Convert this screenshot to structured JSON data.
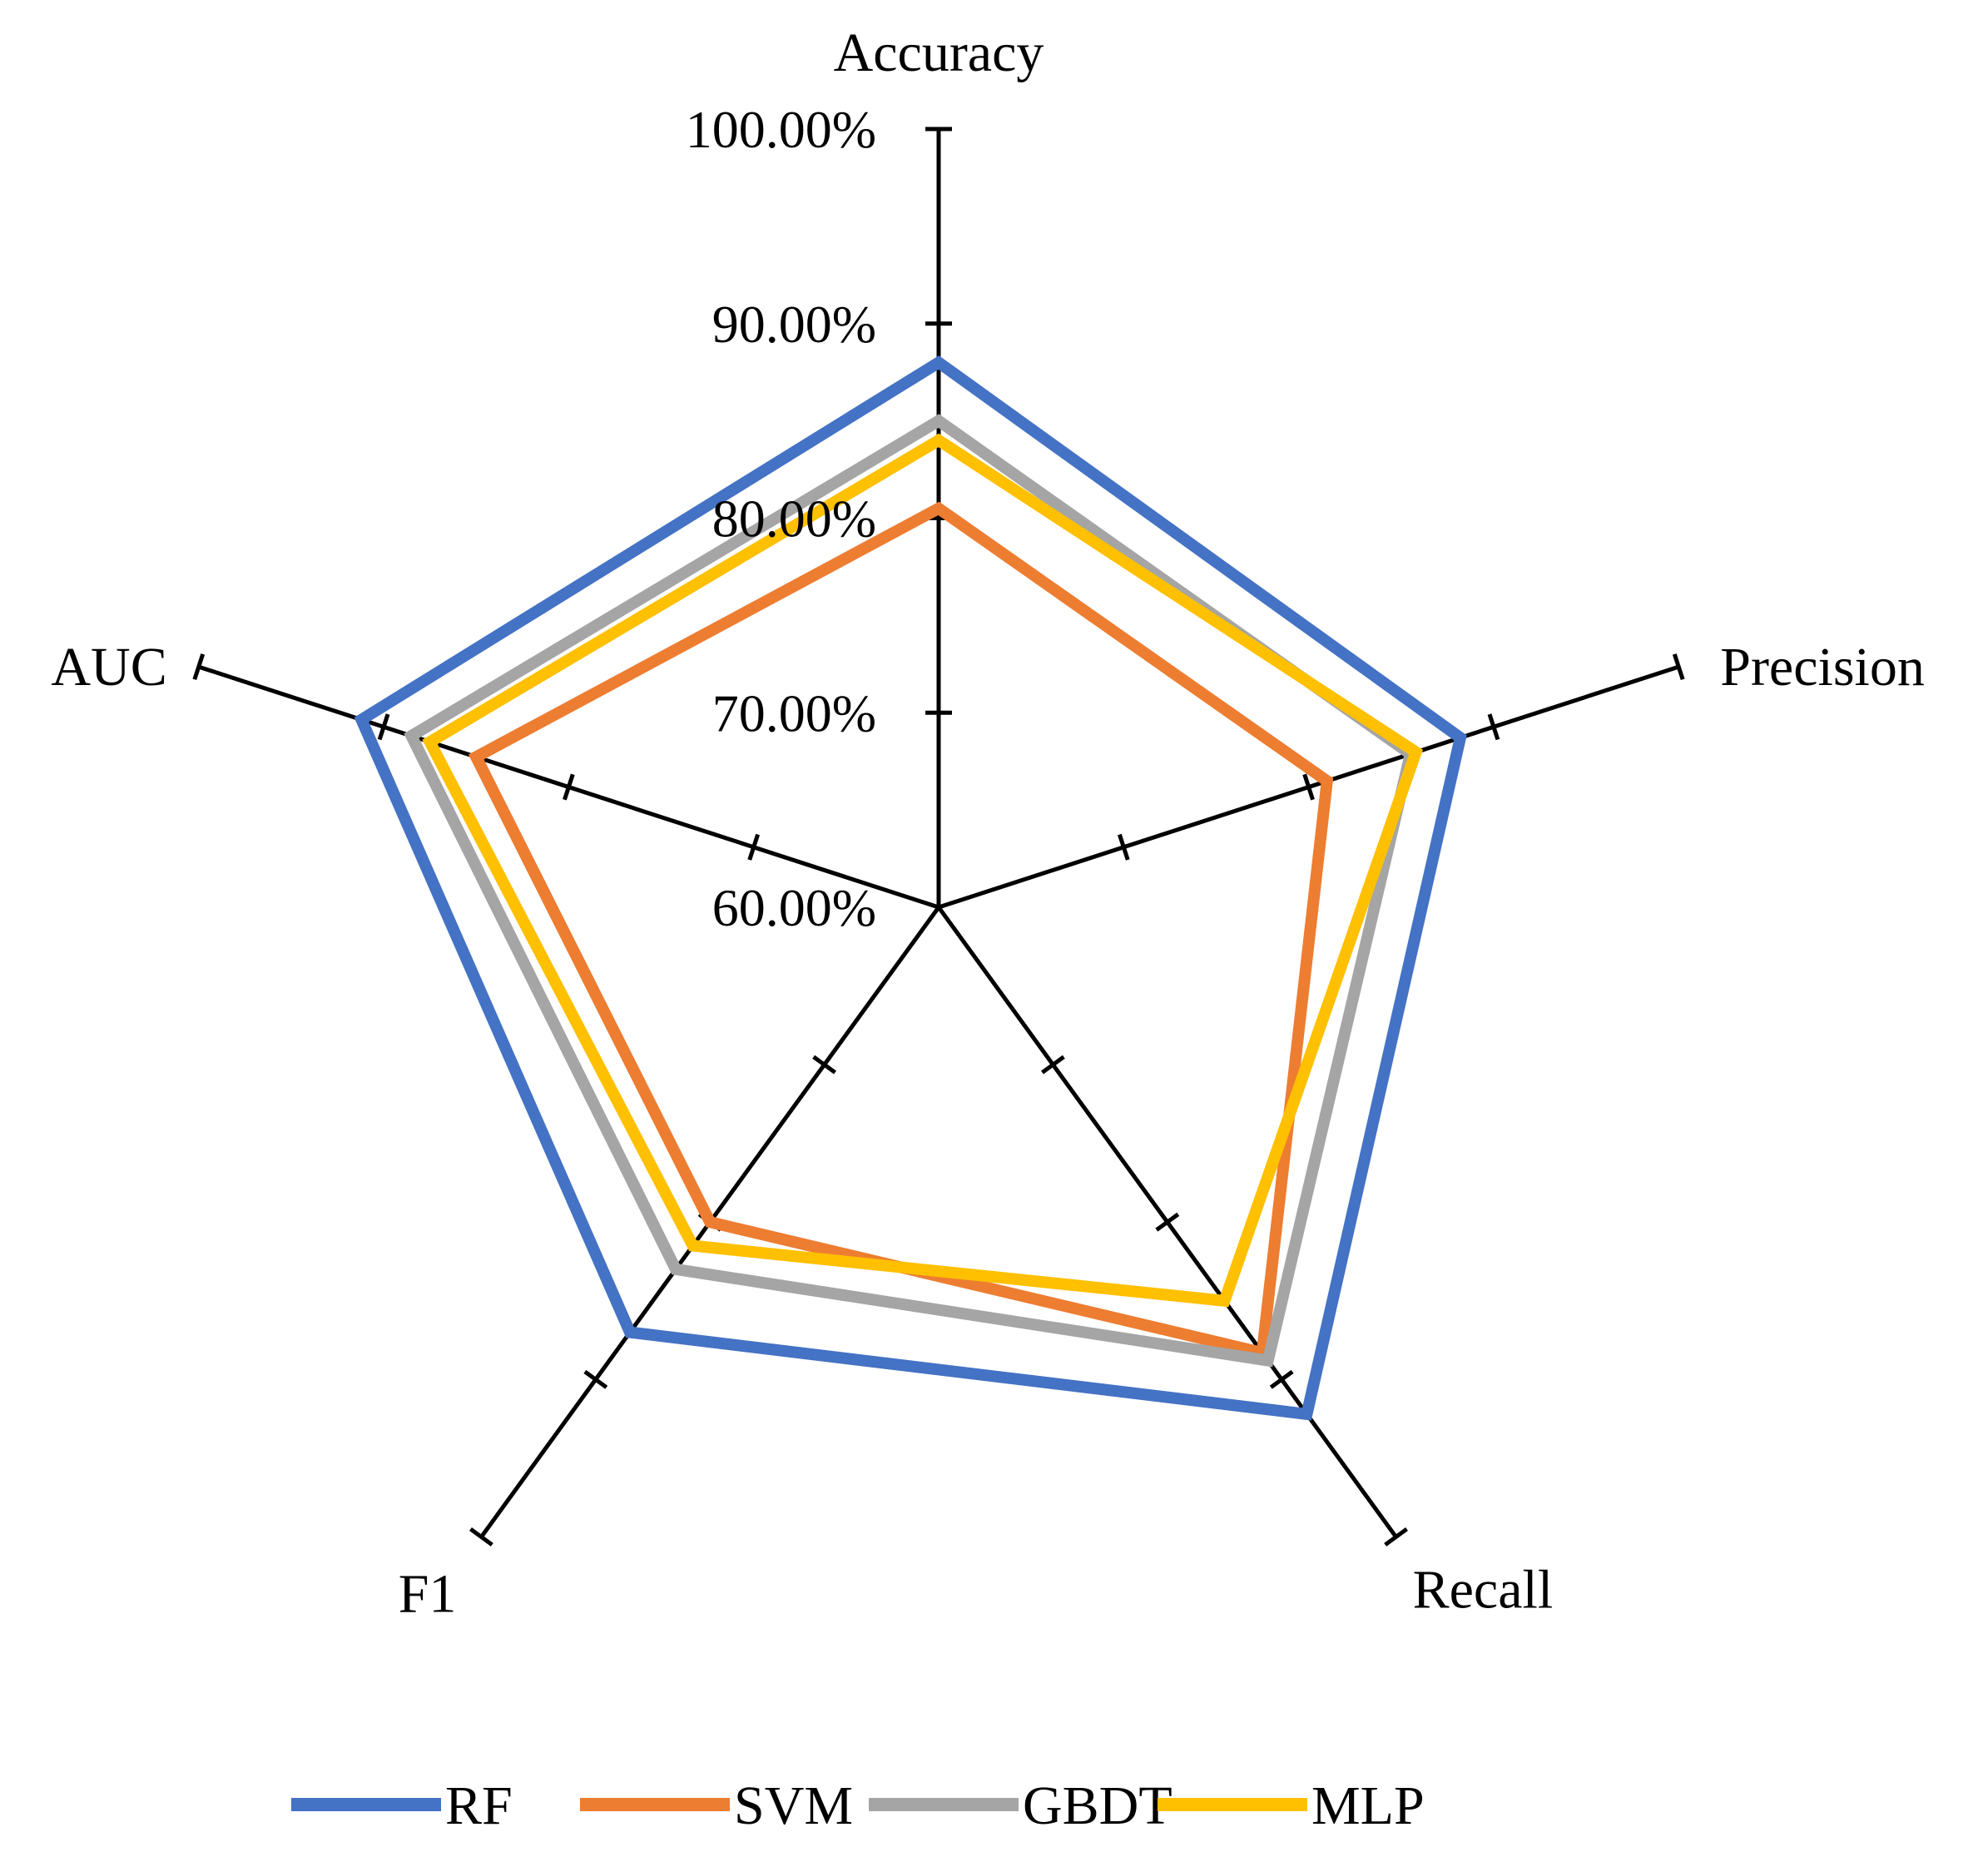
{
  "chart_data": {
    "type": "radar",
    "title": "",
    "axes": [
      "Accuracy",
      "Precision",
      "Recall",
      "F1",
      "AUC"
    ],
    "range": [
      60,
      100
    ],
    "tick_values": [
      60,
      70,
      80,
      90,
      100
    ],
    "tick_labels": [
      "60.00%",
      "70.00%",
      "80.00%",
      "90.00%",
      "100.00%"
    ],
    "series": [
      {
        "name": "RF",
        "color": "#4472C4",
        "values": [
          88.0,
          88.2,
          92.2,
          87.0,
          91.2
        ]
      },
      {
        "name": "SVM",
        "color": "#ED7D31",
        "values": [
          80.5,
          81.0,
          88.3,
          80.0,
          85.0
        ]
      },
      {
        "name": "GBDT",
        "color": "#A5A5A5",
        "values": [
          85.0,
          85.5,
          88.8,
          83.0,
          88.5
        ]
      },
      {
        "name": "MLP",
        "color": "#FFC000",
        "values": [
          84.0,
          85.8,
          85.0,
          81.5,
          87.5
        ]
      }
    ],
    "legend": "bottom"
  }
}
